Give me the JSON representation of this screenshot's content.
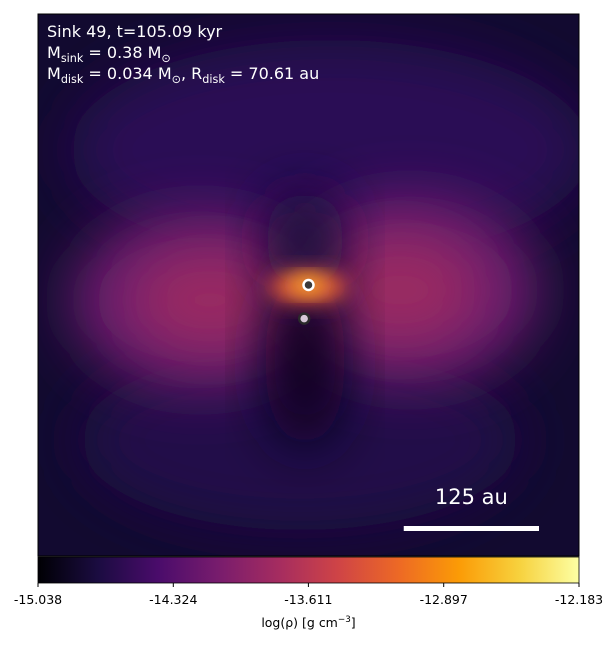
{
  "chart_data": {
    "type": "image",
    "annotations": [
      [
        {
          "t": "Sink 49, t=105.09 kyr"
        }
      ],
      [
        {
          "t": "M",
          "sub": "sink"
        },
        {
          "t": " = 0.38 M",
          "sub": "⊙"
        }
      ],
      [
        {
          "t": "M",
          "sub": "disk"
        },
        {
          "t": " = 0.034 M",
          "sub": "⊙"
        },
        {
          "t": ", R",
          "sub": "disk"
        },
        {
          "t": " = 70.61 au"
        }
      ]
    ],
    "xlim": [
      -250,
      250
    ],
    "ylim": [
      -250,
      250
    ],
    "sinks": {
      "x": [
        0,
        -4
      ],
      "y": [
        0,
        -31
      ],
      "fill": [
        "#3a3a3a",
        "#d8c8d8"
      ],
      "edge": [
        "#ffffff",
        "#2a2a2a"
      ]
    },
    "scale_bar": {
      "value": 125,
      "label": "125 au",
      "color": "#ffffff"
    },
    "colorbar": {
      "clim": [
        -15.038,
        -12.183
      ],
      "ticks": [
        -15.038,
        -14.324,
        -13.611,
        -12.897,
        -12.183
      ],
      "colors": [
        "#000004",
        "#1b0c41",
        "#4a0c6b",
        "#781c6d",
        "#a52c60",
        "#cf4446",
        "#ed6925",
        "#fb9b06",
        "#f7d13d",
        "#fcffa4"
      ],
      "label": [
        {
          "t": "log(ρ) [g cm"
        },
        {
          "sup": "−3"
        },
        {
          "t": "]"
        }
      ]
    }
  }
}
